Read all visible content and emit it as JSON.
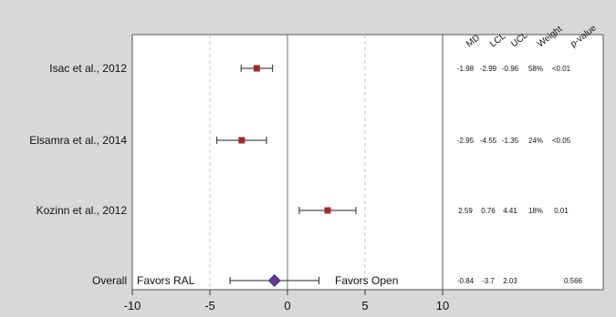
{
  "chart_data": {
    "type": "forest",
    "title": "",
    "xlabel": "",
    "ylabel": "",
    "xlim": [
      -10,
      10
    ],
    "x_ticks": [
      -10,
      -5,
      0,
      5,
      10
    ],
    "x_tick_labels": [
      "-10",
      "-5",
      "0",
      "5",
      "10"
    ],
    "reference_line": 0,
    "dashed_lines": [
      -5,
      5
    ],
    "favors": {
      "left": "Favors RAL",
      "right": "Favors Open"
    },
    "columns": [
      {
        "key": "md",
        "label": "MD"
      },
      {
        "key": "lcl",
        "label": "LCL"
      },
      {
        "key": "ucl",
        "label": "UCL"
      },
      {
        "key": "weight",
        "label": "Weight"
      },
      {
        "key": "p",
        "label": "p-value"
      }
    ],
    "studies": [
      {
        "label": "Isac et al., 2012",
        "md": -1.98,
        "lcl": -2.99,
        "ucl": -0.96,
        "cells": {
          "md": "-1.98",
          "lcl": "-2.99",
          "ucl": "-0.96",
          "weight": "58%",
          "p": "<0.01"
        }
      },
      {
        "label": "Elsamra et al., 2014",
        "md": -2.95,
        "lcl": -4.55,
        "ucl": -1.35,
        "cells": {
          "md": "-2.95",
          "lcl": "-4.55",
          "ucl": "-1.35",
          "weight": "24%",
          "p": "<0.05"
        }
      },
      {
        "label": "Kozinn et al., 2012",
        "md": 2.59,
        "lcl": 0.76,
        "ucl": 4.41,
        "cells": {
          "md": "2.59",
          "lcl": "0.76",
          "ucl": "4.41",
          "weight": "18%",
          "p": "0.01"
        }
      }
    ],
    "overall": {
      "label": "Overall",
      "md": -0.84,
      "lcl": -3.7,
      "ucl": 2.03,
      "cells": {
        "md": "-0.84",
        "lcl": "-3.7",
        "ucl": "2.03",
        "weight": "",
        "p": "0.566"
      }
    },
    "colors": {
      "study_marker": "#a3282a",
      "overall_diamond_fill": "#7b2e8a",
      "overall_diamond_stroke": "#2a3f9a",
      "reference": "#888888",
      "dashed": "#c4c4c4",
      "plot_background": "#ffffff",
      "figure_background": "#d8d8d8"
    }
  }
}
